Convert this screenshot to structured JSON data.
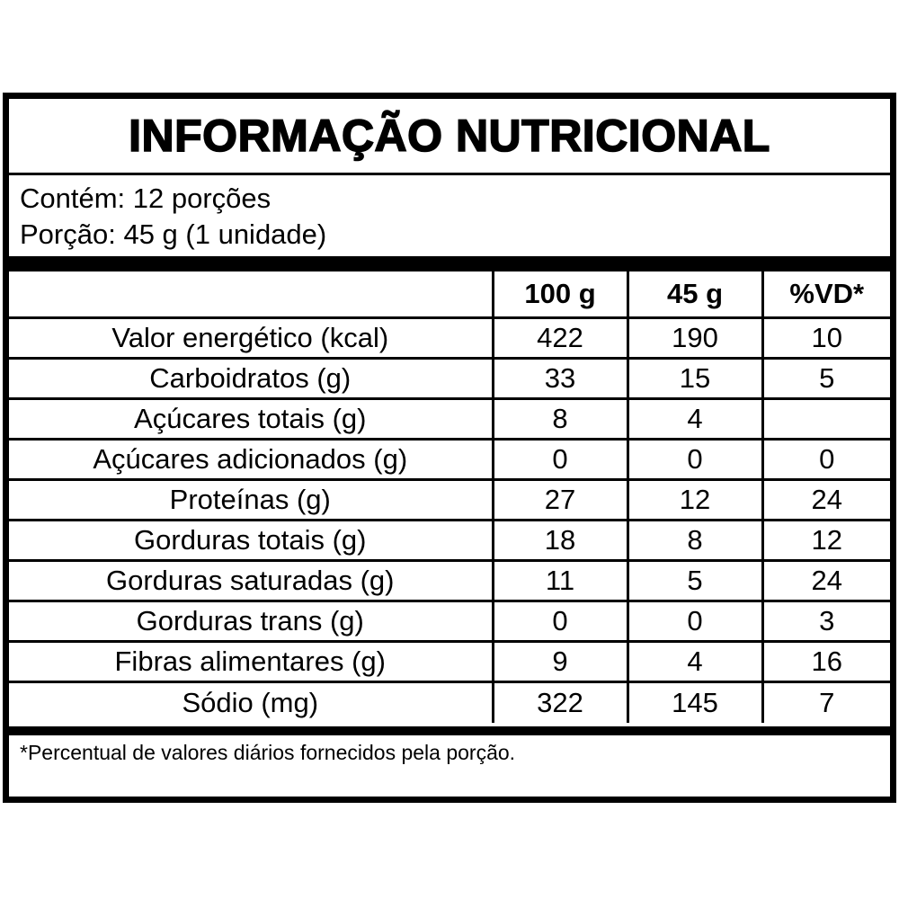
{
  "label": {
    "title": "INFORMAÇÃO NUTRICIONAL",
    "serving_info": {
      "servings_line": "Contém: 12 porções",
      "portion_line": "Porção: 45 g (1 unidade)"
    },
    "table": {
      "columns": [
        "",
        "100 g",
        "45 g",
        "%VD*"
      ],
      "rows": [
        {
          "label": "Valor energético (kcal)",
          "per_100g": "422",
          "per_45g": "190",
          "pct_vd": "10"
        },
        {
          "label": "Carboidratos (g)",
          "per_100g": "33",
          "per_45g": "15",
          "pct_vd": "5"
        },
        {
          "label": "Açúcares totais (g)",
          "per_100g": "8",
          "per_45g": "4",
          "pct_vd": ""
        },
        {
          "label": "Açúcares adicionados (g)",
          "per_100g": "0",
          "per_45g": "0",
          "pct_vd": "0"
        },
        {
          "label": "Proteínas (g)",
          "per_100g": "27",
          "per_45g": "12",
          "pct_vd": "24"
        },
        {
          "label": "Gorduras totais (g)",
          "per_100g": "18",
          "per_45g": "8",
          "pct_vd": "12"
        },
        {
          "label": "Gorduras saturadas (g)",
          "per_100g": "11",
          "per_45g": "5",
          "pct_vd": "24"
        },
        {
          "label": "Gorduras trans (g)",
          "per_100g": "0",
          "per_45g": "0",
          "pct_vd": "3"
        },
        {
          "label": "Fibras alimentares (g)",
          "per_100g": "9",
          "per_45g": "4",
          "pct_vd": "16"
        },
        {
          "label": "Sódio (mg)",
          "per_100g": "322",
          "per_45g": "145",
          "pct_vd": "7"
        }
      ]
    },
    "footnote": "*Percentual de valores diários fornecidos pela porção."
  },
  "colors": {
    "border": "#000000",
    "background": "#ffffff",
    "text": "#000000"
  }
}
